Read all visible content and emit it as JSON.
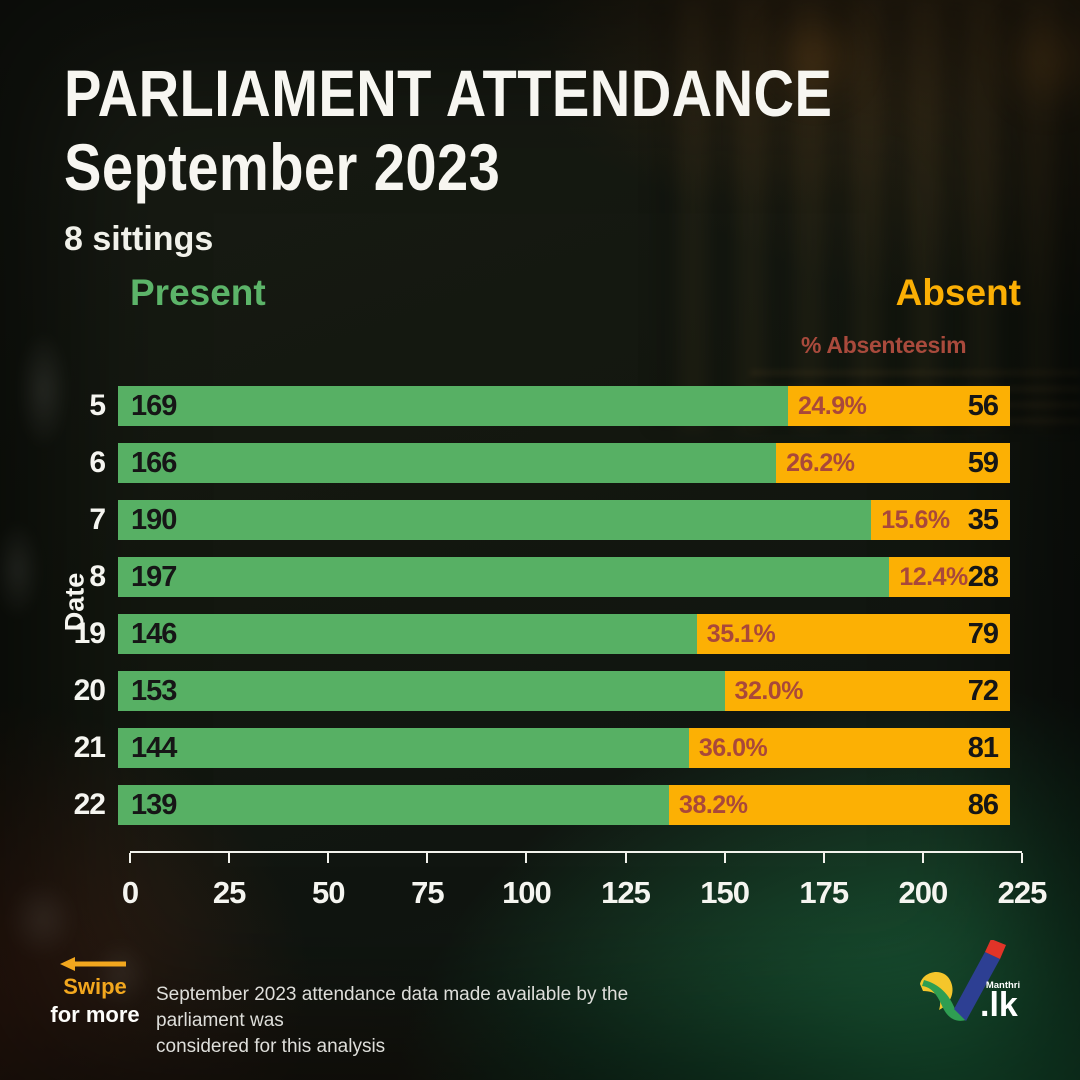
{
  "header": {
    "title_line1": "PARLIAMENT ATTENDANCE",
    "title_line2": "September 2023",
    "subtitle": "8 sittings"
  },
  "legend": {
    "present_label": "Present",
    "absent_label": "Absent",
    "absenteeism_label": "% Absenteesim"
  },
  "chart_data": {
    "type": "bar",
    "orientation": "horizontal",
    "stacked": true,
    "title": "Parliament Attendance September 2023",
    "subtitle": "8 sittings",
    "ylabel": "Date",
    "xlabel": "",
    "xlim": [
      0,
      225
    ],
    "xticks": [
      0,
      25,
      50,
      75,
      100,
      125,
      150,
      175,
      200,
      225
    ],
    "grid": false,
    "legend_position": "top",
    "categories": [
      "5",
      "6",
      "7",
      "8",
      "19",
      "20",
      "21",
      "22"
    ],
    "series": [
      {
        "name": "Present",
        "color": "#57b064",
        "values": [
          169,
          166,
          190,
          197,
          146,
          153,
          144,
          139
        ]
      },
      {
        "name": "Absent",
        "color": "#fcb004",
        "values": [
          56,
          59,
          35,
          28,
          79,
          72,
          81,
          86
        ]
      }
    ],
    "absenteeism_pct": [
      "24.9%",
      "26.2%",
      "15.6%",
      "12.4%",
      "35.1%",
      "32.0%",
      "36.0%",
      "38.2%"
    ]
  },
  "footer": {
    "swipe_label": "Swipe",
    "for_more_label": "for more",
    "note_line1": "September 2023 attendance data made available by the parliament was",
    "note_line2": "considered for this analysis",
    "logo": {
      "brand_small": "Manthri",
      "brand_large": ".lk"
    }
  },
  "colors": {
    "present_green": "#57b064",
    "absent_orange": "#fcb004",
    "absenteeism_red": "#a9483a",
    "swipe_yellow": "#f2a71e",
    "text_white": "#f5f5f0"
  }
}
